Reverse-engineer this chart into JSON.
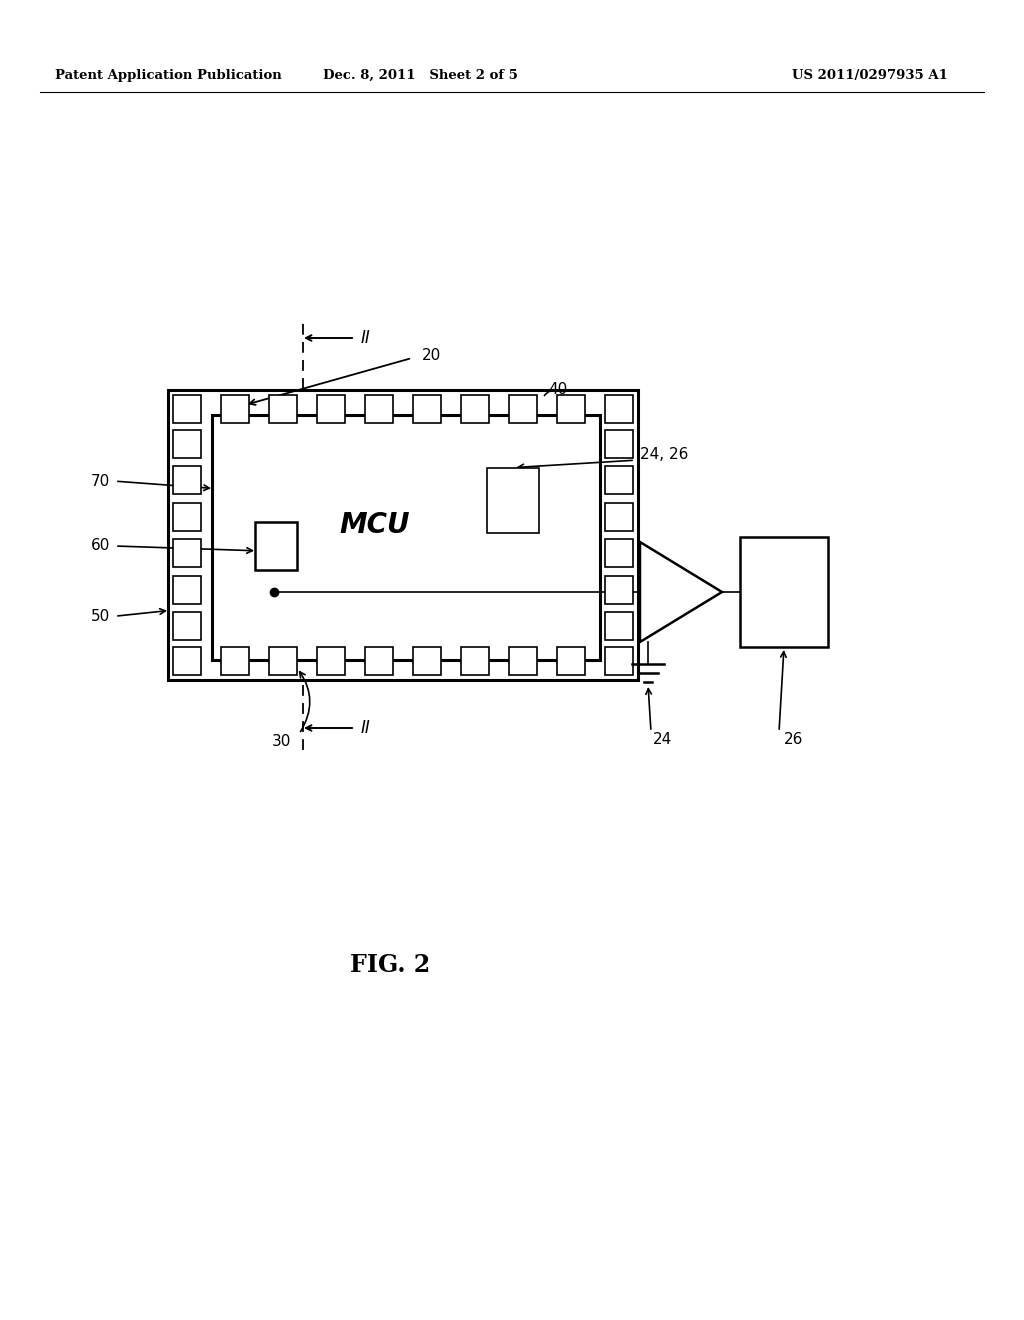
{
  "bg_color": "#ffffff",
  "line_color": "#000000",
  "header_left": "Patent Application Publication",
  "header_mid": "Dec. 8, 2011   Sheet 2 of 5",
  "header_right": "US 2011/0297935 A1",
  "fig_label": "FIG. 2",
  "label_20": "20",
  "label_40": "40",
  "label_70": "70",
  "label_60": "60",
  "label_50": "50",
  "label_30": "30",
  "label_24_26": "24, 26",
  "label_24": "24",
  "label_26": "26",
  "label_II": "II",
  "label_MCU": "MCU",
  "figsize": [
    10.24,
    13.2
  ],
  "dpi": 100
}
